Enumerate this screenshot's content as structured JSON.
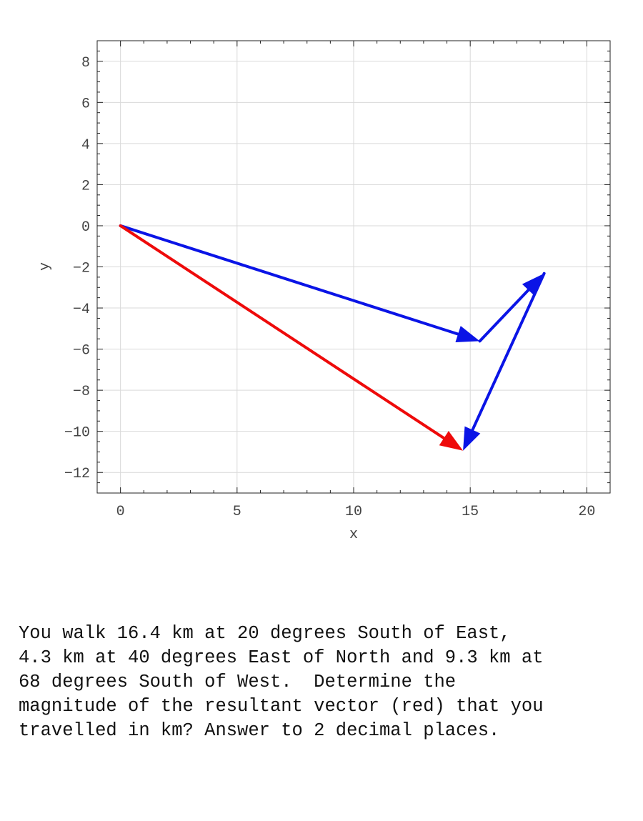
{
  "chart_data": {
    "type": "vector-diagram",
    "xlabel": "x",
    "ylabel": "y",
    "xlim": [
      -1,
      21
    ],
    "ylim": [
      -13,
      9
    ],
    "x_ticks": [
      0,
      5,
      10,
      15,
      20
    ],
    "y_ticks": [
      8,
      6,
      4,
      2,
      0,
      -2,
      -4,
      -6,
      -8,
      -10,
      -12
    ],
    "grid": true,
    "vectors": [
      {
        "from": [
          0,
          0
        ],
        "to": [
          15.41,
          -5.61
        ],
        "color": "#0a14e6"
      },
      {
        "from": [
          15.41,
          -5.61
        ],
        "to": [
          18.17,
          -2.32
        ],
        "color": "#0a14e6"
      },
      {
        "from": [
          18.17,
          -2.32
        ],
        "to": [
          14.69,
          -10.94
        ],
        "color": "#0a14e6"
      },
      {
        "from": [
          0,
          0
        ],
        "to": [
          14.69,
          -10.94
        ],
        "color": "#ee0a0a"
      }
    ]
  },
  "question": {
    "text": "You walk 16.4 km at 20 degrees South of East,\n4.3 km at 40 degrees East of North and 9.3 km at\n68 degrees South of West.  Determine the\nmagnitude of the resultant vector (red) that you\ntravelled in km? Answer to 2 decimal places."
  }
}
